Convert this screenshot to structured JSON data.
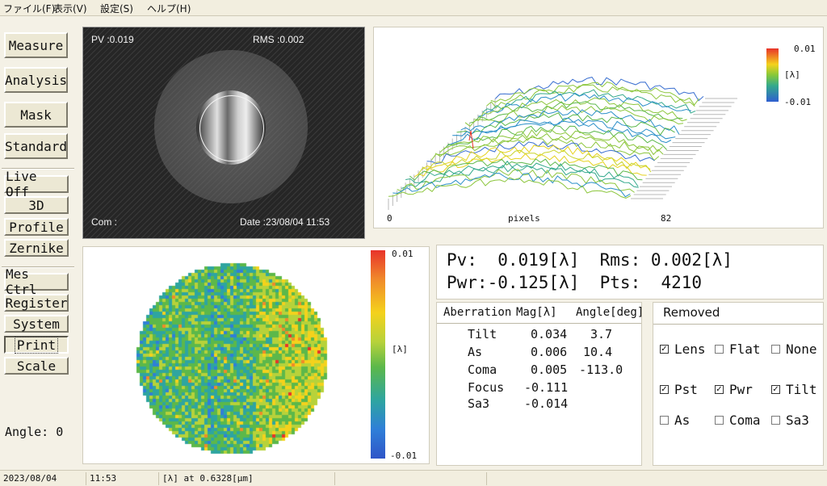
{
  "menu": [
    "ファイル(F)",
    "表示(V)",
    "設定(S)",
    "ヘルプ(H)"
  ],
  "buttons": {
    "measure": "Measure",
    "analysis": "Analysis",
    "mask": "Mask",
    "standard": "Standard",
    "live_off": "Live Off",
    "three_d": "3D",
    "profile": "Profile",
    "zernike": "Zernike",
    "mes_ctrl": "Mes Ctrl",
    "register": "Register",
    "system": "System",
    "print": "Print",
    "scale": "Scale"
  },
  "angle_label": "Angle: 0",
  "camera": {
    "pv": "PV :0.019",
    "rms": "RMS :0.002",
    "com": "Com :",
    "date": "Date :23/08/04 11:53"
  },
  "plot3d": {
    "scale_max": "0.01",
    "scale_unit": "[λ]",
    "scale_min": "-0.01",
    "x_min": "0",
    "x_label": "pixels",
    "x_max": "82"
  },
  "map": {
    "scale_max": "0.01",
    "scale_unit": "[λ]",
    "scale_min": "-0.01"
  },
  "values": {
    "row1": "Pv:  0.019[λ]  Rms: 0.002[λ]",
    "row2": "Pwr:-0.125[λ]  Pts:  4210"
  },
  "aberration": {
    "headers": {
      "name": "Aberration",
      "mag": "Mag[λ]",
      "angle": "Angle[deg]"
    },
    "rows": [
      {
        "name": "Tilt",
        "mag": "0.034",
        "angle": "3.7"
      },
      {
        "name": "As",
        "mag": "0.006",
        "angle": "10.4"
      },
      {
        "name": "Coma",
        "mag": "0.005",
        "angle": "-113.0"
      },
      {
        "name": "Focus",
        "mag": "-0.111",
        "angle": ""
      },
      {
        "name": "Sa3",
        "mag": "-0.014",
        "angle": ""
      }
    ]
  },
  "removed": {
    "title": "Removed",
    "items": [
      {
        "label": "Lens",
        "checked": true
      },
      {
        "label": "Flat",
        "checked": false
      },
      {
        "label": "None",
        "checked": false
      },
      {
        "label": "Pst",
        "checked": true
      },
      {
        "label": "Pwr",
        "checked": true
      },
      {
        "label": "Tilt",
        "checked": true
      },
      {
        "label": "As",
        "checked": false
      },
      {
        "label": "Coma",
        "checked": false
      },
      {
        "label": "Sa3",
        "checked": false
      }
    ]
  },
  "status": {
    "date": "2023/08/04",
    "time": "11:53",
    "wavelength": "[λ] at 0.6328[μm]"
  }
}
